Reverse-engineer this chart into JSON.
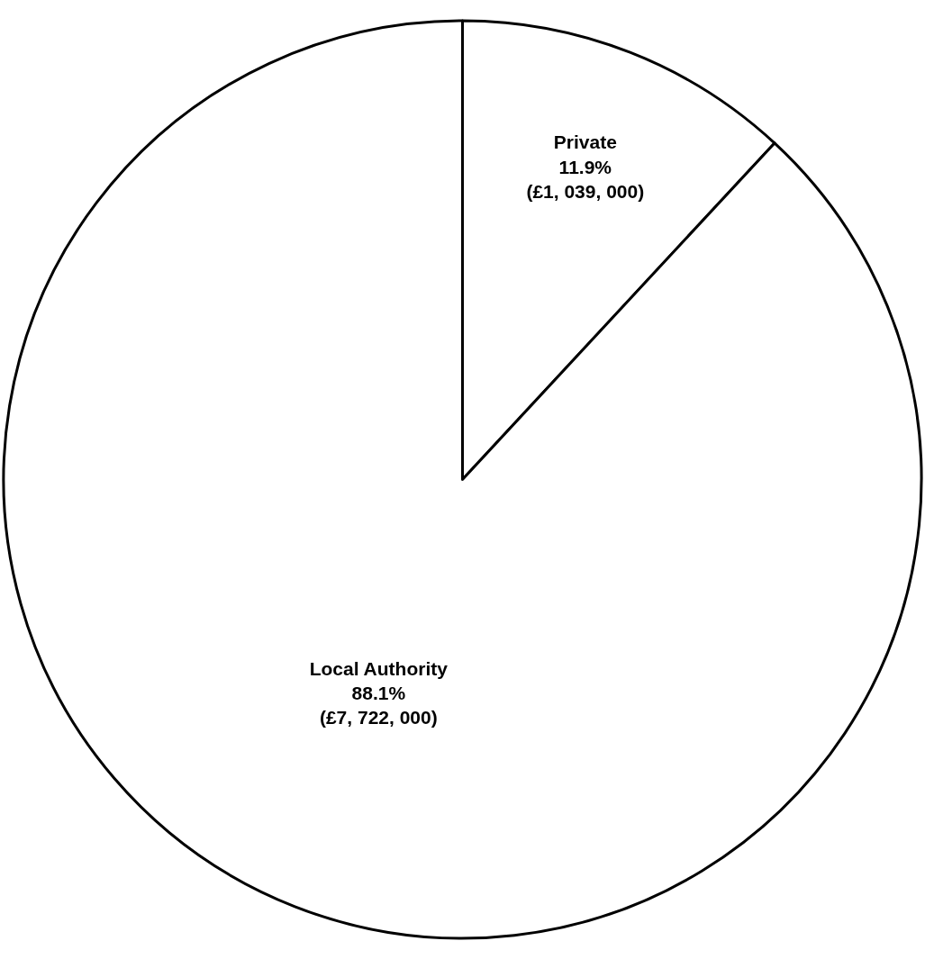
{
  "chart_data": {
    "type": "pie",
    "categories": [
      "Private",
      "Local Authority"
    ],
    "values": [
      11.9,
      88.1
    ],
    "value_labels": [
      "11.9%\n(£1, 039, 000)",
      "88.1%\n(£7, 722, 000)"
    ],
    "colors": [
      "#ffffff",
      "#ffffff"
    ],
    "legend": false
  }
}
